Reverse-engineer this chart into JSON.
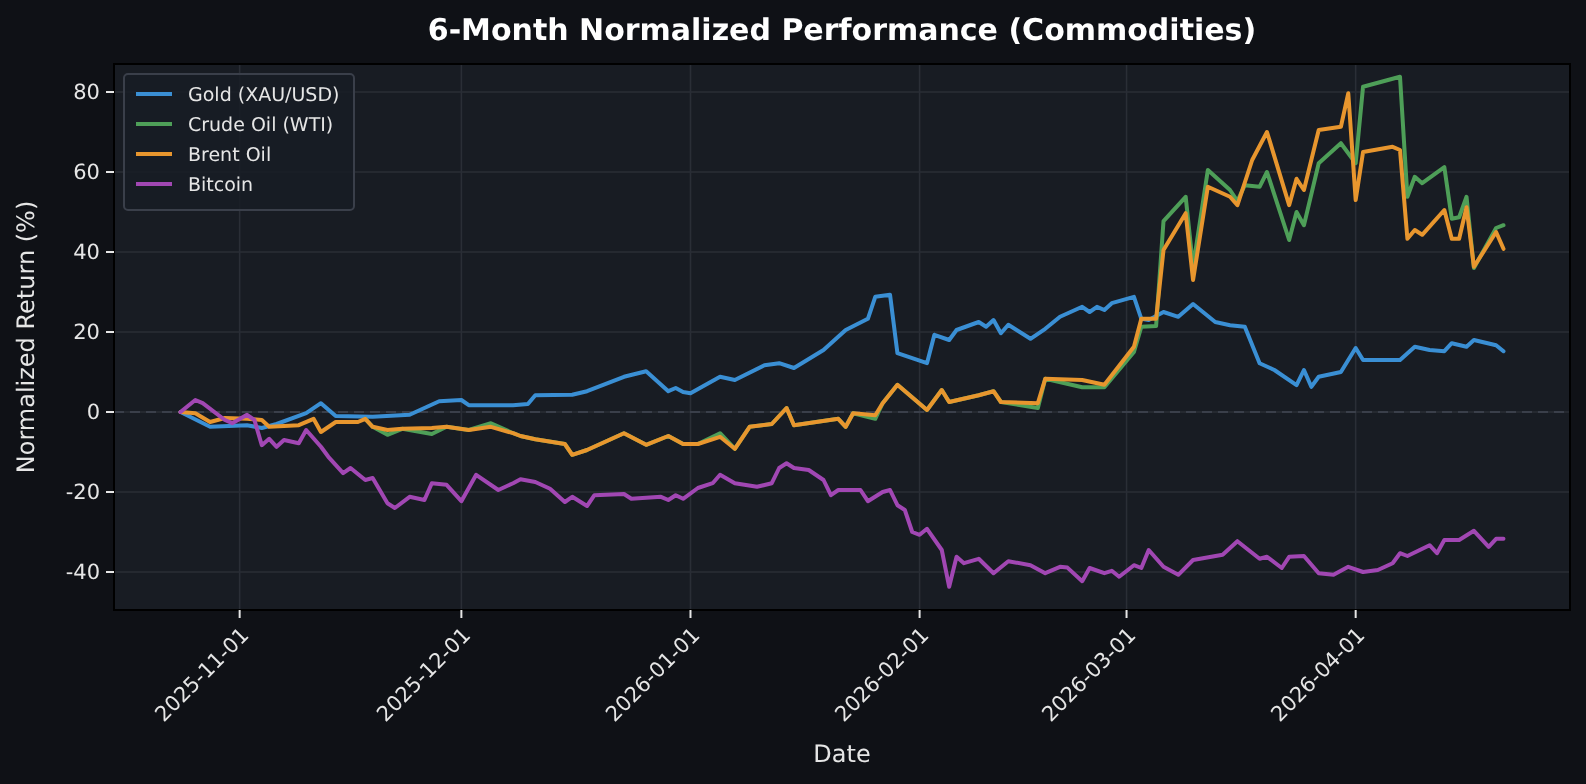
{
  "chart_data": {
    "type": "line",
    "title": "6-Month Normalized Performance (Commodities)",
    "xlabel": "Date",
    "ylabel": "Normalized Return (%)",
    "xlim": [
      "2025-10-15",
      "2026-04-30"
    ],
    "ylim": [
      -49.5,
      87
    ],
    "xticks": [
      "2025-11-01",
      "2025-12-01",
      "2026-01-01",
      "2026-02-01",
      "2026-03-01",
      "2026-04-01"
    ],
    "yticks": [
      -40,
      -20,
      0,
      20,
      40,
      60,
      80
    ],
    "grid": true,
    "legend": "top left",
    "line_style": "solid",
    "ref_lines": [
      {
        "axis": "y",
        "value": 0,
        "label": null,
        "color": "#3a3f4a",
        "line_style": "dashed"
      }
    ],
    "series": [
      {
        "name": "Gold (XAU/USD)",
        "color": "#3a8fd4",
        "x": [
          "2025-10-24",
          "2025-10-28",
          "2025-11-02",
          "2025-11-04",
          "2025-11-06",
          "2025-11-10",
          "2025-11-12",
          "2025-11-14",
          "2025-11-19",
          "2025-11-24",
          "2025-11-28",
          "2025-12-01",
          "2025-12-02",
          "2025-12-08",
          "2025-12-10",
          "2025-12-11",
          "2025-12-16",
          "2025-12-18",
          "2025-12-23",
          "2025-12-26",
          "2025-12-29",
          "2025-12-30",
          "2025-12-31",
          "2026-01-01",
          "2026-01-05",
          "2026-01-07",
          "2026-01-11",
          "2026-01-13",
          "2026-01-15",
          "2026-01-19",
          "2026-01-22",
          "2026-01-25",
          "2026-01-26",
          "2026-01-28",
          "2026-01-29",
          "2026-02-02",
          "2026-02-03",
          "2026-02-05",
          "2026-02-06",
          "2026-02-09",
          "2026-02-10",
          "2026-02-11",
          "2026-02-12",
          "2026-02-13",
          "2026-02-16",
          "2026-02-18",
          "2026-02-20",
          "2026-02-23",
          "2026-02-24",
          "2026-02-25",
          "2026-02-26",
          "2026-02-27",
          "2026-03-02",
          "2026-03-03",
          "2026-03-04",
          "2026-03-06",
          "2026-03-08",
          "2026-03-10",
          "2026-03-13",
          "2026-03-15",
          "2026-03-17",
          "2026-03-19",
          "2026-03-21",
          "2026-03-24",
          "2026-03-25",
          "2026-03-26",
          "2026-03-27",
          "2026-03-30",
          "2026-04-01",
          "2026-04-02",
          "2026-04-07",
          "2026-04-09",
          "2026-04-11",
          "2026-04-13",
          "2026-04-14",
          "2026-04-16",
          "2026-04-17",
          "2026-04-20",
          "2026-04-21"
        ],
        "values": [
          0,
          -3.7,
          -3.3,
          -4,
          -3,
          -0.3,
          2.2,
          -1,
          -1.2,
          -0.7,
          2.7,
          3,
          1.7,
          1.7,
          2,
          4.2,
          4.3,
          5.2,
          8.8,
          10.2,
          5.2,
          6,
          5,
          4.7,
          8.8,
          8,
          11.7,
          12.2,
          11,
          15.5,
          20.5,
          23.3,
          28.8,
          29.3,
          14.7,
          12.2,
          19.3,
          18,
          20.5,
          22.5,
          21.3,
          23,
          19.7,
          21.8,
          18.3,
          20.8,
          23.8,
          26.3,
          25,
          26.3,
          25.5,
          27.2,
          28.8,
          23.3,
          23,
          25,
          23.8,
          27,
          22.5,
          21.7,
          21.3,
          12.2,
          10.5,
          6.7,
          10.5,
          6.3,
          8.8,
          10,
          16,
          13,
          13,
          16.3,
          15.5,
          15.2,
          17.2,
          16.3,
          18,
          16.7,
          15.2
        ]
      },
      {
        "name": "Crude Oil (WTI)",
        "color": "#4e9f58",
        "x": [
          "2025-11-18",
          "2025-11-19",
          "2025-11-21",
          "2025-11-23",
          "2025-11-27",
          "2025-11-29",
          "2025-12-02",
          "2025-12-05",
          "2025-12-08",
          "2025-12-09",
          "2025-12-11",
          "2025-12-15",
          "2025-12-16",
          "2025-12-18",
          "2025-12-23",
          "2025-12-26",
          "2025-12-29",
          "2025-12-31",
          "2026-01-02",
          "2026-01-05",
          "2026-01-07",
          "2026-01-09",
          "2026-01-12",
          "2026-01-14",
          "2026-01-15",
          "2026-01-21",
          "2026-01-22",
          "2026-01-23",
          "2026-01-26",
          "2026-01-27",
          "2026-01-29",
          "2026-02-02",
          "2026-02-04",
          "2026-02-05",
          "2026-02-09",
          "2026-02-11",
          "2026-02-12",
          "2026-02-17",
          "2026-02-18",
          "2026-02-23",
          "2026-02-26",
          "2026-03-02",
          "2026-03-03",
          "2026-03-05",
          "2026-03-06",
          "2026-03-09",
          "2026-03-10",
          "2026-03-12",
          "2026-03-15",
          "2026-03-16",
          "2026-03-17",
          "2026-03-19",
          "2026-03-20",
          "2026-03-23",
          "2026-03-24",
          "2026-03-25",
          "2026-03-27",
          "2026-03-30",
          "2026-04-01",
          "2026-04-02",
          "2026-04-07",
          "2026-04-08",
          "2026-04-09",
          "2026-04-10",
          "2026-04-13",
          "2026-04-14",
          "2026-04-15",
          "2026-04-16",
          "2026-04-17",
          "2026-04-20",
          "2026-04-21"
        ],
        "values": [
          -1.7,
          -3.7,
          -5.7,
          -4.2,
          -5.5,
          -3.7,
          -4.5,
          -2.8,
          -5.3,
          -6,
          -6.8,
          -8,
          -10.7,
          -9.5,
          -5.3,
          -8.2,
          -6,
          -8,
          -8,
          -5.3,
          -9.2,
          -3.7,
          -3,
          1,
          -3.3,
          -1.7,
          -3.7,
          -0.3,
          -1.7,
          2.2,
          6.8,
          0.5,
          5.5,
          2.5,
          4.2,
          5.2,
          2.5,
          1,
          8.3,
          6.2,
          6.2,
          15,
          21.3,
          21.5,
          47.7,
          53.8,
          36.3,
          60.5,
          55.5,
          52.7,
          56.7,
          56.3,
          60,
          43,
          50,
          46.7,
          62.2,
          67.2,
          62.2,
          81.3,
          83.8,
          53.8,
          58.8,
          57.2,
          61.2,
          48.3,
          48.7,
          53.8,
          36,
          46,
          46.7
        ]
      },
      {
        "name": "Brent Oil",
        "color": "#e8962e",
        "x": [
          "2025-10-24",
          "2025-10-26",
          "2025-10-28",
          "2025-10-30",
          "2025-11-02",
          "2025-11-04",
          "2025-11-05",
          "2025-11-09",
          "2025-11-11",
          "2025-11-12",
          "2025-11-14",
          "2025-11-17",
          "2025-11-18",
          "2025-11-19",
          "2025-11-21",
          "2025-11-23",
          "2025-11-27",
          "2025-11-29",
          "2025-12-02",
          "2025-12-05",
          "2025-12-08",
          "2025-12-09",
          "2025-12-11",
          "2025-12-15",
          "2025-12-16",
          "2025-12-18",
          "2025-12-23",
          "2025-12-26",
          "2025-12-29",
          "2025-12-31",
          "2026-01-02",
          "2026-01-05",
          "2026-01-07",
          "2026-01-09",
          "2026-01-12",
          "2026-01-14",
          "2026-01-15",
          "2026-01-21",
          "2026-01-22",
          "2026-01-23",
          "2026-01-26",
          "2026-01-27",
          "2026-01-29",
          "2026-02-02",
          "2026-02-04",
          "2026-02-05",
          "2026-02-09",
          "2026-02-11",
          "2026-02-12",
          "2026-02-17",
          "2026-02-18",
          "2026-02-23",
          "2026-02-26",
          "2026-03-02",
          "2026-03-03",
          "2026-03-05",
          "2026-03-06",
          "2026-03-09",
          "2026-03-10",
          "2026-03-12",
          "2026-03-15",
          "2026-03-16",
          "2026-03-18",
          "2026-03-20",
          "2026-03-23",
          "2026-03-24",
          "2026-03-25",
          "2026-03-27",
          "2026-03-30",
          "2026-03-31",
          "2026-04-01",
          "2026-04-02",
          "2026-04-06",
          "2026-04-07",
          "2026-04-08",
          "2026-04-09",
          "2026-04-10",
          "2026-04-13",
          "2026-04-14",
          "2026-04-15",
          "2026-04-16",
          "2026-04-17",
          "2026-04-20",
          "2026-04-21"
        ],
        "values": [
          0,
          -0.3,
          -2.5,
          -1.5,
          -1.7,
          -2,
          -3.7,
          -3.3,
          -1.7,
          -5,
          -2.5,
          -2.5,
          -1.7,
          -3.7,
          -4.5,
          -4.2,
          -4,
          -3.7,
          -4.5,
          -3.7,
          -5.3,
          -6,
          -6.8,
          -8,
          -10.7,
          -9.5,
          -5.3,
          -8.2,
          -6,
          -8,
          -8,
          -6.2,
          -9.2,
          -3.7,
          -3,
          1,
          -3.3,
          -1.7,
          -3.7,
          -0.3,
          -0.8,
          2.2,
          6.8,
          0.5,
          5.5,
          2.5,
          4.2,
          5.2,
          2.5,
          2.2,
          8.3,
          8,
          6.8,
          16.3,
          23.3,
          23.3,
          40.5,
          49.7,
          33,
          56.3,
          53.8,
          51.7,
          63,
          70,
          51.7,
          58.3,
          55.5,
          70.5,
          71.3,
          79.7,
          53,
          65,
          66.3,
          65.5,
          43.3,
          45.5,
          44.3,
          50.5,
          43.3,
          43.3,
          51.2,
          36.3,
          45,
          40.8
        ]
      },
      {
        "name": "Bitcoin",
        "color": "#a147b3",
        "x": [
          "2025-10-24",
          "2025-10-26",
          "2025-10-27",
          "2025-10-30",
          "2025-10-31",
          "2025-11-02",
          "2025-11-03",
          "2025-11-04",
          "2025-11-05",
          "2025-11-06",
          "2025-11-07",
          "2025-11-09",
          "2025-11-10",
          "2025-11-12",
          "2025-11-13",
          "2025-11-15",
          "2025-11-16",
          "2025-11-18",
          "2025-11-19",
          "2025-11-21",
          "2025-11-22",
          "2025-11-24",
          "2025-11-26",
          "2025-11-27",
          "2025-11-29",
          "2025-12-01",
          "2025-12-03",
          "2025-12-06",
          "2025-12-08",
          "2025-12-09",
          "2025-12-11",
          "2025-12-13",
          "2025-12-15",
          "2025-12-16",
          "2025-12-18",
          "2025-12-19",
          "2025-12-23",
          "2025-12-24",
          "2025-12-28",
          "2025-12-29",
          "2025-12-30",
          "2025-12-31",
          "2026-01-02",
          "2026-01-04",
          "2026-01-05",
          "2026-01-07",
          "2026-01-10",
          "2026-01-12",
          "2026-01-13",
          "2026-01-14",
          "2026-01-15",
          "2026-01-17",
          "2026-01-19",
          "2026-01-20",
          "2026-01-21",
          "2026-01-24",
          "2026-01-25",
          "2026-01-27",
          "2026-01-28",
          "2026-01-29",
          "2026-01-30",
          "2026-01-31",
          "2026-02-01",
          "2026-02-02",
          "2026-02-04",
          "2026-02-05",
          "2026-02-06",
          "2026-02-07",
          "2026-02-09",
          "2026-02-11",
          "2026-02-13",
          "2026-02-16",
          "2026-02-18",
          "2026-02-20",
          "2026-02-21",
          "2026-02-23",
          "2026-02-24",
          "2026-02-26",
          "2026-02-27",
          "2026-02-28",
          "2026-03-02",
          "2026-03-03",
          "2026-03-04",
          "2026-03-06",
          "2026-03-08",
          "2026-03-10",
          "2026-03-14",
          "2026-03-16",
          "2026-03-19",
          "2026-03-20",
          "2026-03-22",
          "2026-03-23",
          "2026-03-25",
          "2026-03-27",
          "2026-03-29",
          "2026-03-31",
          "2026-04-02",
          "2026-04-04",
          "2026-04-06",
          "2026-04-07",
          "2026-04-08",
          "2026-04-11",
          "2026-04-12",
          "2026-04-13",
          "2026-04-15",
          "2026-04-17",
          "2026-04-19",
          "2026-04-20",
          "2026-04-21"
        ],
        "values": [
          0,
          3,
          2.2,
          -2,
          -2.8,
          -0.7,
          -2,
          -8.3,
          -6.7,
          -8.7,
          -7,
          -7.8,
          -4.5,
          -8.7,
          -11.2,
          -15.3,
          -14,
          -17,
          -16.5,
          -22.8,
          -24,
          -21.2,
          -22,
          -17.8,
          -18.2,
          -22.3,
          -15.7,
          -19.5,
          -17.8,
          -16.8,
          -17.5,
          -19.2,
          -22.5,
          -21.2,
          -23.5,
          -20.8,
          -20.5,
          -21.7,
          -21.2,
          -22,
          -20.8,
          -21.7,
          -19,
          -17.8,
          -15.7,
          -17.8,
          -18.7,
          -17.8,
          -14,
          -12.8,
          -14,
          -14.5,
          -17,
          -20.8,
          -19.5,
          -19.5,
          -22.3,
          -20,
          -19.5,
          -23.3,
          -24.5,
          -30,
          -30.7,
          -29.2,
          -34.5,
          -43.7,
          -36.2,
          -37.8,
          -36.7,
          -40.3,
          -37.3,
          -38.3,
          -40.3,
          -38.7,
          -38.9,
          -42.3,
          -39,
          -40.3,
          -39.7,
          -41.2,
          -38.3,
          -39,
          -34.5,
          -38.7,
          -40.7,
          -37,
          -35.7,
          -32.3,
          -36.7,
          -36.2,
          -39,
          -36.2,
          -36,
          -40.3,
          -40.7,
          -38.7,
          -40,
          -39.5,
          -37.8,
          -35.3,
          -36,
          -33.3,
          -35.3,
          -32,
          -32,
          -29.7,
          -33.7,
          -31.7,
          -31.7
        ]
      }
    ]
  }
}
